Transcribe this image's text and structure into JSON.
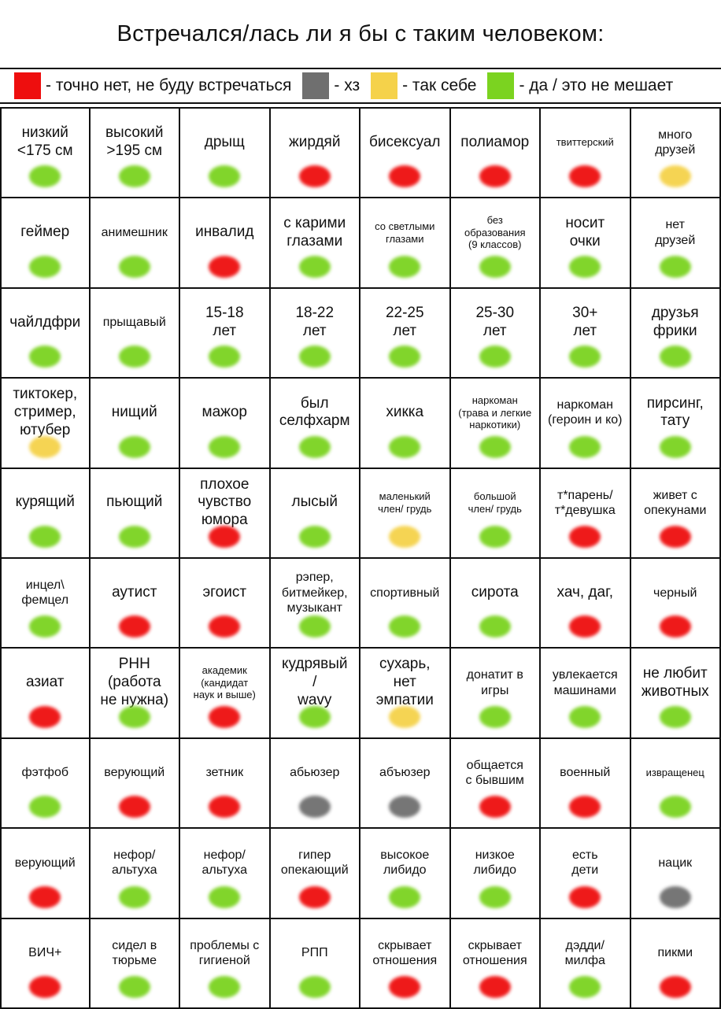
{
  "title": "Встречался/лась ли я бы с таким человеком:",
  "colors": {
    "red": "#ee0e0e",
    "gray": "#6f6f6f",
    "yellow": "#f5d24a",
    "green": "#7bd320"
  },
  "legend": [
    {
      "color": "red",
      "label": "- точно нет, не буду встречаться"
    },
    {
      "color": "gray",
      "label": "- хз"
    },
    {
      "color": "yellow",
      "label": "- так себе"
    },
    {
      "color": "green",
      "label": "- да / это не мешает"
    }
  ],
  "cells": [
    {
      "label": "низкий\n<175 см",
      "dot": "green",
      "size": "l"
    },
    {
      "label": "высокий\n>195 см",
      "dot": "green",
      "size": "l"
    },
    {
      "label": "дрыщ",
      "dot": "green",
      "size": "l"
    },
    {
      "label": "жирдяй",
      "dot": "red",
      "size": "l"
    },
    {
      "label": "бисексуал",
      "dot": "red",
      "size": "l"
    },
    {
      "label": "полиамор",
      "dot": "red",
      "size": "l"
    },
    {
      "label": "твиттерский",
      "dot": "red",
      "size": "s"
    },
    {
      "label": "много\nдрузей",
      "dot": "yellow",
      "size": "m"
    },
    {
      "label": "геймер",
      "dot": "green",
      "size": "l"
    },
    {
      "label": "анимешник",
      "dot": "green",
      "size": "m"
    },
    {
      "label": "инвалид",
      "dot": "red",
      "size": "l"
    },
    {
      "label": "с карими\nглазами",
      "dot": "green",
      "size": "l"
    },
    {
      "label": "со светлыми\nглазами",
      "dot": "green",
      "size": "s"
    },
    {
      "label": "без\nобразования\n(9 классов)",
      "dot": "green",
      "size": "s"
    },
    {
      "label": "носит\nочки",
      "dot": "green",
      "size": "l"
    },
    {
      "label": "нет\nдрузей",
      "dot": "green",
      "size": "m"
    },
    {
      "label": "чайлдфри",
      "dot": "green",
      "size": "l"
    },
    {
      "label": "прыщавый",
      "dot": "green",
      "size": "m"
    },
    {
      "label": "15-18\nлет",
      "dot": "green",
      "size": "l"
    },
    {
      "label": "18-22\nлет",
      "dot": "green",
      "size": "l"
    },
    {
      "label": "22-25\nлет",
      "dot": "green",
      "size": "l"
    },
    {
      "label": "25-30\nлет",
      "dot": "green",
      "size": "l"
    },
    {
      "label": "30+\nлет",
      "dot": "green",
      "size": "l"
    },
    {
      "label": "друзья\nфрики",
      "dot": "green",
      "size": "l"
    },
    {
      "label": "тиктокер,\nстример,\nютубер",
      "dot": "yellow",
      "size": "l"
    },
    {
      "label": "нищий",
      "dot": "green",
      "size": "l"
    },
    {
      "label": "мажор",
      "dot": "green",
      "size": "l"
    },
    {
      "label": "был\nселфхарм",
      "dot": "green",
      "size": "l"
    },
    {
      "label": "хикка",
      "dot": "green",
      "size": "l"
    },
    {
      "label": "наркоман\n(трава и легкие\nнаркотики)",
      "dot": "green",
      "size": "s"
    },
    {
      "label": "наркоман\n(героин и ко)",
      "dot": "green",
      "size": "m"
    },
    {
      "label": "пирсинг,\nтату",
      "dot": "green",
      "size": "l"
    },
    {
      "label": "курящий",
      "dot": "green",
      "size": "l"
    },
    {
      "label": "пьющий",
      "dot": "green",
      "size": "l"
    },
    {
      "label": "плохое\nчувство\nюмора",
      "dot": "red",
      "size": "l"
    },
    {
      "label": "лысый",
      "dot": "green",
      "size": "l"
    },
    {
      "label": "маленький\nчлен/ грудь",
      "dot": "yellow",
      "size": "s"
    },
    {
      "label": "большой\nчлен/ грудь",
      "dot": "green",
      "size": "s"
    },
    {
      "label": "т*парень/\nт*девушка",
      "dot": "red",
      "size": "m"
    },
    {
      "label": "живет с\nопекунами",
      "dot": "red",
      "size": "m"
    },
    {
      "label": "инцел\\\nфемцел",
      "dot": "green",
      "size": "m"
    },
    {
      "label": "аутист",
      "dot": "red",
      "size": "l"
    },
    {
      "label": "эгоист",
      "dot": "red",
      "size": "l"
    },
    {
      "label": "рэпер,\nбитмейкер,\nмузыкант",
      "dot": "green",
      "size": "m"
    },
    {
      "label": "спортивный",
      "dot": "green",
      "size": "m"
    },
    {
      "label": "сирота",
      "dot": "green",
      "size": "l"
    },
    {
      "label": "хач, даг,",
      "dot": "red",
      "size": "l"
    },
    {
      "label": "черный",
      "dot": "red",
      "size": "m"
    },
    {
      "label": "азиат",
      "dot": "red",
      "size": "l"
    },
    {
      "label": "РНН\n(работа\nне нужна)",
      "dot": "green",
      "size": "l"
    },
    {
      "label": "академик\n(кандидат\nнаук и выше)",
      "dot": "red",
      "size": "s"
    },
    {
      "label": "кудрявый\n/\nwavy",
      "dot": "green",
      "size": "l"
    },
    {
      "label": "сухарь,\nнет\nэмпатии",
      "dot": "yellow",
      "size": "l"
    },
    {
      "label": "донатит в\nигры",
      "dot": "green",
      "size": "m"
    },
    {
      "label": "увлекается\nмашинами",
      "dot": "green",
      "size": "m"
    },
    {
      "label": "не любит\nживотных",
      "dot": "green",
      "size": "l"
    },
    {
      "label": "фэтфоб",
      "dot": "green",
      "size": "m"
    },
    {
      "label": "верующий",
      "dot": "red",
      "size": "m"
    },
    {
      "label": "зетник",
      "dot": "red",
      "size": "m"
    },
    {
      "label": "абьюзер",
      "dot": "gray",
      "size": "m"
    },
    {
      "label": "абъюзер",
      "dot": "gray",
      "size": "m"
    },
    {
      "label": "общается\nс бывшим",
      "dot": "red",
      "size": "m"
    },
    {
      "label": "военный",
      "dot": "red",
      "size": "m"
    },
    {
      "label": "извращенец",
      "dot": "green",
      "size": "s"
    },
    {
      "label": "верующий",
      "dot": "red",
      "size": "m"
    },
    {
      "label": "нефор/\nальтуха",
      "dot": "green",
      "size": "m"
    },
    {
      "label": "нефор/\nальтуха",
      "dot": "green",
      "size": "m"
    },
    {
      "label": "гипер\nопекающий",
      "dot": "red",
      "size": "m"
    },
    {
      "label": "высокое\nлибидо",
      "dot": "green",
      "size": "m"
    },
    {
      "label": "низкое\nлибидо",
      "dot": "green",
      "size": "m"
    },
    {
      "label": "есть\nдети",
      "dot": "red",
      "size": "m"
    },
    {
      "label": "нацик",
      "dot": "gray",
      "size": "m"
    },
    {
      "label": "ВИЧ+",
      "dot": "red",
      "size": "m"
    },
    {
      "label": "сидел в\nтюрьме",
      "dot": "green",
      "size": "m"
    },
    {
      "label": "проблемы с\nгигиеной",
      "dot": "green",
      "size": "m"
    },
    {
      "label": "РПП",
      "dot": "green",
      "size": "m"
    },
    {
      "label": "скрывает\nотношения",
      "dot": "red",
      "size": "m"
    },
    {
      "label": "скрывает\nотношения",
      "dot": "red",
      "size": "m"
    },
    {
      "label": "дэдди/\nмилфа",
      "dot": "green",
      "size": "m"
    },
    {
      "label": "пикми",
      "dot": "red",
      "size": "m"
    }
  ]
}
